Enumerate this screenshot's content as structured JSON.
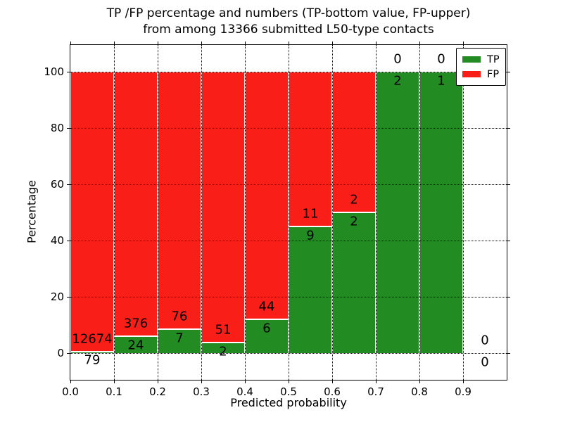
{
  "title": {
    "line1": "TP /FP percentage and numbers (TP-bottom value, FP-upper)",
    "line2": "from among 13366 submitted L50-type contacts"
  },
  "axes": {
    "xlabel": "Predicted probability",
    "ylabel": "Percentage",
    "x_tick_labels": [
      "0.0",
      "0.1",
      "0.2",
      "0.3",
      "0.4",
      "0.5",
      "0.6",
      "0.7",
      "0.8",
      "0.9"
    ],
    "x_tick_values": [
      0,
      0.1,
      0.2,
      0.3,
      0.4,
      0.5,
      0.6,
      0.7,
      0.8,
      0.9
    ],
    "y_tick_labels": [
      "0",
      "20",
      "40",
      "60",
      "80",
      "100"
    ],
    "y_tick_values": [
      0,
      20,
      40,
      60,
      80,
      100
    ],
    "xlim": [
      0,
      1.0
    ],
    "ylim": [
      -9.5,
      109.5
    ],
    "grid": "dotted, drawn above bars"
  },
  "legend": {
    "position": "upper right",
    "items": [
      {
        "label": "TP",
        "color": "#228b22"
      },
      {
        "label": "FP",
        "color": "#fa1e19"
      }
    ]
  },
  "chart_data": {
    "type": "bar",
    "stacked": true,
    "normalized": "percent of bin total (TP bottom, FP upper)",
    "total_submitted": 13366,
    "bin_width": 0.1,
    "bins": [
      {
        "x_range": [
          0.0,
          0.1
        ],
        "tp_count": 79,
        "fp_count": 12674,
        "tp_pct": 0.62
      },
      {
        "x_range": [
          0.1,
          0.2
        ],
        "tp_count": 24,
        "fp_count": 376,
        "tp_pct": 6.0
      },
      {
        "x_range": [
          0.2,
          0.3
        ],
        "tp_count": 7,
        "fp_count": 76,
        "tp_pct": 8.43
      },
      {
        "x_range": [
          0.3,
          0.4
        ],
        "tp_count": 2,
        "fp_count": 51,
        "tp_pct": 3.77
      },
      {
        "x_range": [
          0.4,
          0.5
        ],
        "tp_count": 6,
        "fp_count": 44,
        "tp_pct": 12.0
      },
      {
        "x_range": [
          0.5,
          0.6
        ],
        "tp_count": 9,
        "fp_count": 11,
        "tp_pct": 45.0
      },
      {
        "x_range": [
          0.6,
          0.7
        ],
        "tp_count": 2,
        "fp_count": 2,
        "tp_pct": 50.0
      },
      {
        "x_range": [
          0.7,
          0.8
        ],
        "tp_count": 2,
        "fp_count": 0,
        "tp_pct": 100.0
      },
      {
        "x_range": [
          0.8,
          0.9
        ],
        "tp_count": 1,
        "fp_count": 0,
        "tp_pct": 100.0
      },
      {
        "x_range": [
          0.9,
          1.0
        ],
        "tp_count": 0,
        "fp_count": 0,
        "tp_pct": null
      }
    ]
  },
  "colors": {
    "tp": "#228b22",
    "fp": "#fa1e19",
    "bar_edge": "#ffffff",
    "grid": "#000000",
    "text": "#000000",
    "background": "#ffffff"
  }
}
